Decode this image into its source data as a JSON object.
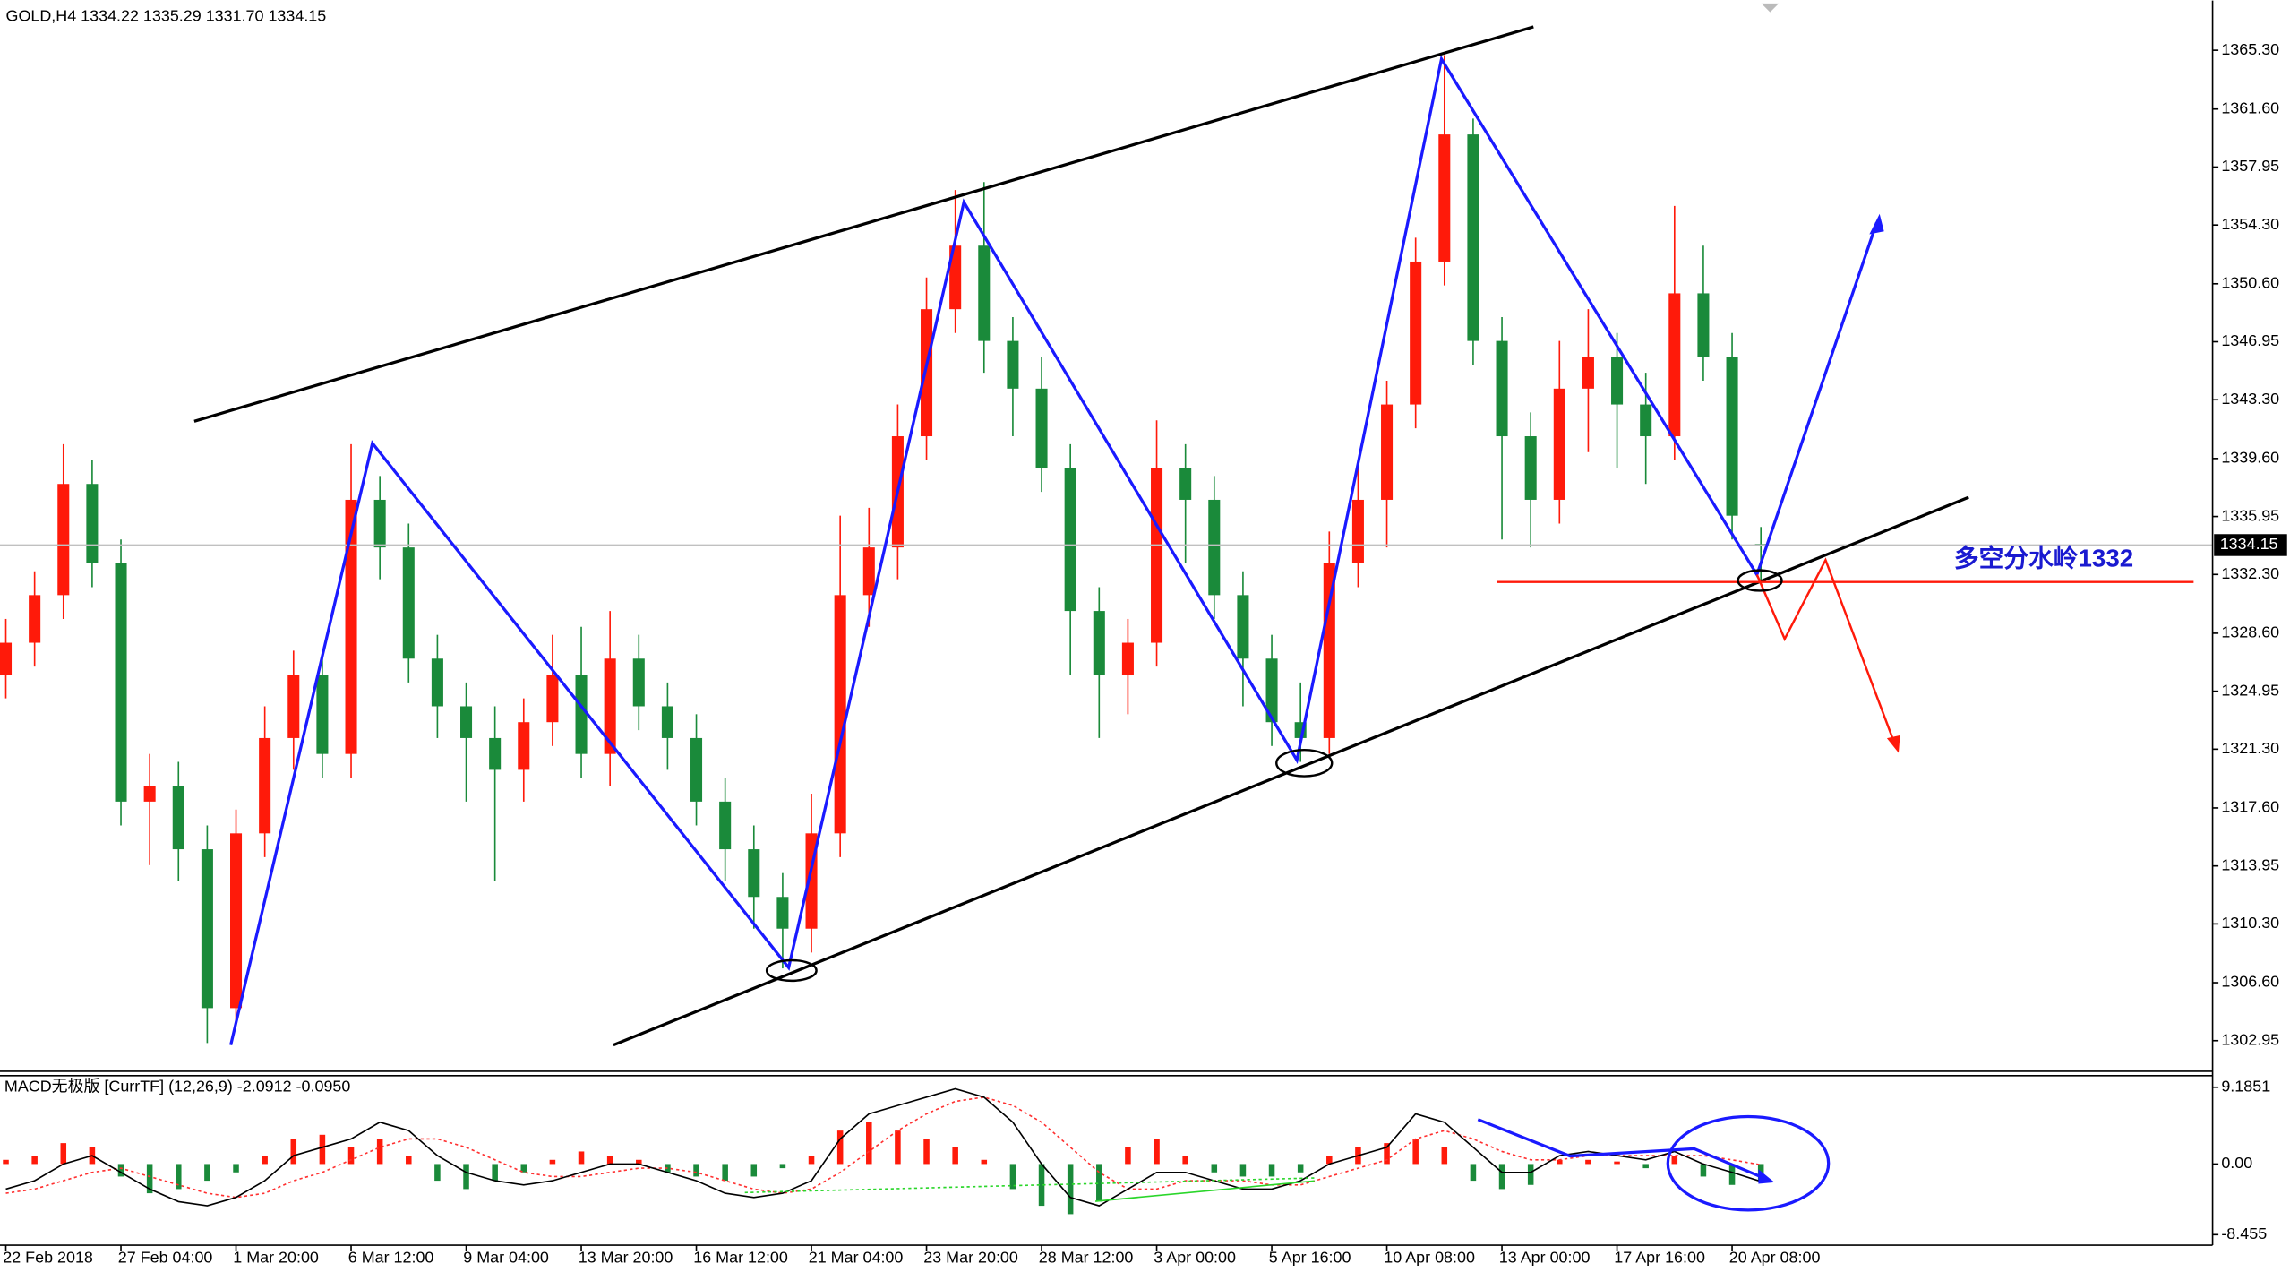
{
  "chart_data": [
    {
      "type": "candlestick",
      "title": "GOLD,H4  1334.22 1335.29 1331.70 1334.15",
      "categories": [
        "22 Feb 2018",
        null,
        null,
        null,
        "27 Feb 04:00",
        null,
        null,
        null,
        "1 Mar 20:00",
        null,
        null,
        null,
        "6 Mar 12:00",
        null,
        null,
        null,
        "9 Mar 04:00",
        null,
        null,
        null,
        "13 Mar 20:00",
        null,
        null,
        null,
        "16 Mar 12:00",
        null,
        null,
        null,
        "21 Mar 04:00",
        null,
        null,
        null,
        "23 Mar 20:00",
        null,
        null,
        null,
        "28 Mar 12:00",
        null,
        null,
        null,
        "3 Apr 00:00",
        null,
        null,
        null,
        "5 Apr 16:00",
        null,
        null,
        null,
        "10 Apr 08:00",
        null,
        null,
        null,
        "13 Apr 00:00",
        null,
        null,
        null,
        "17 Apr 16:00",
        null,
        null,
        null,
        "20 Apr 08:00",
        null
      ],
      "open": [
        1326,
        1328,
        1331,
        1338,
        1333,
        1318,
        1319,
        1315,
        1305,
        1316,
        1322,
        1326,
        1321,
        1337,
        1334,
        1327,
        1324,
        1322,
        1320,
        1323,
        1326,
        1321,
        1327,
        1324,
        1322,
        1318,
        1315,
        1312,
        1310,
        1316,
        1331,
        1334,
        1341,
        1349,
        1353,
        1347,
        1344,
        1339,
        1330,
        1326,
        1328,
        1339,
        1337,
        1331,
        1327,
        1323,
        1322,
        1333,
        1337,
        1343,
        1352,
        1360,
        1347,
        1341,
        1337,
        1344,
        1346,
        1343,
        1341,
        1350,
        1346,
        1334.22
      ],
      "high": [
        1329.5,
        1332.5,
        1340.5,
        1339.5,
        1334.5,
        1321,
        1320.5,
        1316.5,
        1317.5,
        1324,
        1327.5,
        1327.5,
        1340.5,
        1338.5,
        1335.5,
        1328.5,
        1325.5,
        1324,
        1324.5,
        1328.5,
        1329,
        1330,
        1328.5,
        1325.5,
        1323.5,
        1319.5,
        1316.5,
        1313.5,
        1318.5,
        1336,
        1336.5,
        1343,
        1351,
        1356.5,
        1357,
        1348.5,
        1346,
        1340.5,
        1331.5,
        1329.5,
        1342,
        1340.5,
        1338.5,
        1332.5,
        1328.5,
        1325.5,
        1335,
        1339,
        1344.5,
        1353.5,
        1365,
        1361,
        1348.5,
        1342.5,
        1347,
        1349,
        1347.5,
        1345,
        1355.5,
        1353,
        1347.5,
        1335.29
      ],
      "low": [
        1324.5,
        1326.5,
        1329.5,
        1331.5,
        1316.5,
        1314,
        1313,
        1302.8,
        1304,
        1314.5,
        1320,
        1319.5,
        1319.5,
        1332,
        1325.5,
        1322,
        1318,
        1313,
        1318,
        1321.5,
        1319.5,
        1319,
        1322.5,
        1320,
        1316.5,
        1313,
        1310,
        1307.5,
        1308.5,
        1314.5,
        1329,
        1332,
        1339.5,
        1347.5,
        1345,
        1341,
        1337.5,
        1326,
        1322,
        1323.5,
        1326.5,
        1333,
        1329.5,
        1324,
        1321.5,
        1320.5,
        1321,
        1331.5,
        1334,
        1341.5,
        1350.5,
        1345.5,
        1334.5,
        1334,
        1335.5,
        1340,
        1339,
        1338,
        1339.5,
        1344.5,
        1334.5,
        1331.7
      ],
      "close": [
        1328,
        1331,
        1338,
        1333,
        1318,
        1319,
        1315,
        1305,
        1316,
        1322,
        1326,
        1321,
        1337,
        1334,
        1327,
        1324,
        1322,
        1320,
        1323,
        1326,
        1321,
        1327,
        1324,
        1322,
        1318,
        1315,
        1312,
        1310,
        1316,
        1331,
        1334,
        1341,
        1349,
        1353,
        1347,
        1344,
        1339,
        1330,
        1326,
        1328,
        1339,
        1337,
        1331,
        1327,
        1323,
        1322,
        1333,
        1337,
        1343,
        1352,
        1360,
        1347,
        1341,
        1337,
        1344,
        1346,
        1343,
        1341,
        1350,
        1346,
        1336,
        1334.15
      ],
      "up_color": "#ff1a0a",
      "down_color": "#1a8a3a",
      "ylim": [
        1301.02,
        1368.43
      ],
      "yticks": [
        {
          "value": 1365.3,
          "label": "1365.30"
        },
        {
          "value": 1361.6,
          "label": "1361.60"
        },
        {
          "value": 1357.95,
          "label": "1357.95"
        },
        {
          "value": 1354.3,
          "label": "1354.30"
        },
        {
          "value": 1350.6,
          "label": "1350.60"
        },
        {
          "value": 1346.95,
          "label": "1346.95"
        },
        {
          "value": 1343.3,
          "label": "1343.30"
        },
        {
          "value": 1339.6,
          "label": "1339.60"
        },
        {
          "value": 1335.95,
          "label": "1335.95"
        },
        {
          "value": 1332.3,
          "label": "1332.30"
        },
        {
          "value": 1328.6,
          "label": "1328.60"
        },
        {
          "value": 1324.95,
          "label": "1324.95"
        },
        {
          "value": 1321.3,
          "label": "1321.30"
        },
        {
          "value": 1317.6,
          "label": "1317.60"
        },
        {
          "value": 1313.95,
          "label": "1313.95"
        },
        {
          "value": 1310.3,
          "label": "1310.30"
        },
        {
          "value": 1306.6,
          "label": "1306.60"
        },
        {
          "value": 1302.95,
          "label": "1302.95"
        }
      ],
      "current_price": 1334.15,
      "annotation": "多空分水岭1332"
    },
    {
      "type": "macd",
      "title": "MACD无极版 [CurrTF] (12,26,9) -2.0912 -0.0950",
      "histogram": [
        0.5,
        1,
        2.5,
        2,
        -1.5,
        -3.5,
        -3,
        -2,
        -1,
        1,
        3,
        3.5,
        2,
        3,
        1,
        -2,
        -3,
        -2,
        -1,
        0.5,
        1.5,
        1,
        0.5,
        -1,
        -1.5,
        -2,
        -1.5,
        -0.5,
        1,
        4,
        5,
        4,
        3,
        2,
        0.5,
        -3,
        -5,
        -6,
        -4.5,
        2,
        3,
        1,
        -1,
        -1.5,
        -1.5,
        -1,
        1,
        2,
        2.5,
        3,
        2,
        -2,
        -3,
        -2.5,
        0.5,
        0.5,
        0.3,
        -0.5,
        1,
        -1.5,
        -2.5,
        -2
      ],
      "macd": [
        -3,
        -2,
        0,
        1,
        -1,
        -3,
        -4.5,
        -5,
        -4,
        -2,
        1,
        2,
        3,
        5,
        4,
        1,
        -1,
        -2,
        -2.5,
        -2,
        -1,
        0,
        0,
        -1,
        -2,
        -3.5,
        -4,
        -3.5,
        -2,
        3,
        6,
        7,
        8,
        9,
        8,
        5,
        0,
        -4,
        -5,
        -3,
        -1,
        -1,
        -2,
        -3,
        -3,
        -2,
        0,
        1,
        2,
        6,
        5,
        2,
        -1,
        -1,
        1,
        1.5,
        1,
        0.5,
        1.5,
        0,
        -1,
        -2.0912
      ],
      "signal": [
        -3.5,
        -3,
        -2,
        -1,
        -0.5,
        -1.5,
        -2.5,
        -3.5,
        -4,
        -3.5,
        -2,
        -1,
        0.5,
        2,
        3,
        3,
        2,
        0.5,
        -1,
        -1.5,
        -1.5,
        -1,
        -0.5,
        -0.5,
        -1,
        -2,
        -3,
        -3.5,
        -3,
        -1,
        1.5,
        4,
        6,
        7.5,
        8,
        7,
        5,
        2,
        -1,
        -3,
        -3,
        -2,
        -2,
        -2,
        -2.5,
        -2.5,
        -1.5,
        -0.5,
        0.5,
        3,
        4,
        3,
        1.5,
        0.5,
        0.5,
        1,
        1,
        1,
        1,
        1,
        0.5,
        -0.095
      ],
      "pos_color": "#ff1a0a",
      "neg_color": "#1a8a3a",
      "macd_color": "#000000",
      "signal_color": "#ff3030",
      "ylim": [
        -9.71,
        10.57
      ],
      "yticks": [
        9.1851,
        {
          "value": 0,
          "label": "0.00"
        },
        -8.455
      ]
    }
  ]
}
